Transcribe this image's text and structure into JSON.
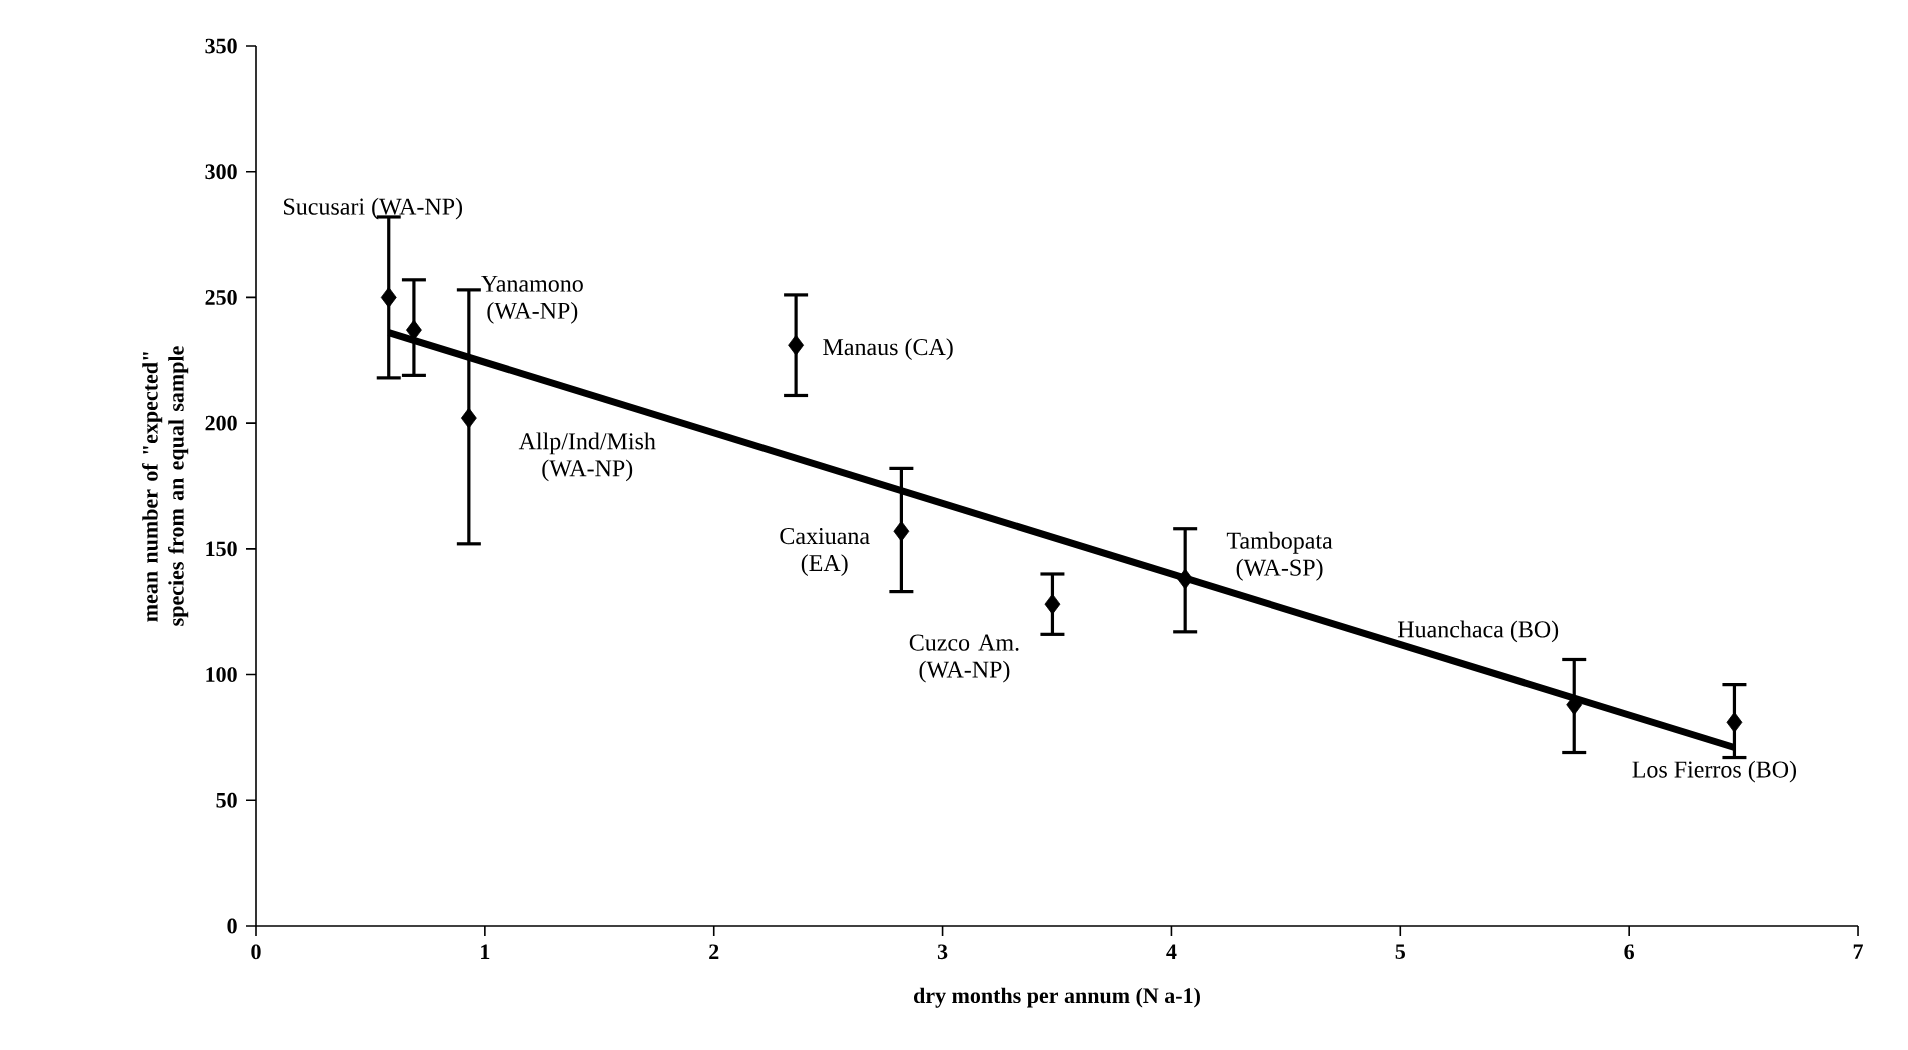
{
  "chart_data": {
    "type": "scatter",
    "xlabel": "dry months per annum (N a-1)",
    "ylabel": "mean number of \"expected\" species from an equal sample",
    "xlim": [
      0,
      7
    ],
    "xticks": [
      0,
      1,
      2,
      3,
      4,
      5,
      6,
      7
    ],
    "ylim": [
      0,
      350
    ],
    "yticks": [
      0,
      50,
      100,
      150,
      200,
      250,
      300,
      350
    ],
    "series": [
      {
        "color": "#000000",
        "marker": "diamond",
        "x": [
          0.58,
          0.69,
          0.93,
          2.36,
          2.82,
          3.48,
          4.06,
          5.76,
          6.46
        ],
        "values": [
          250,
          237,
          202,
          231,
          157,
          128,
          138,
          88,
          81
        ],
        "errors": [
          [
            218,
            282
          ],
          [
            219,
            257
          ],
          [
            152,
            253
          ],
          [
            211,
            251
          ],
          [
            133,
            182
          ],
          [
            116,
            140
          ],
          [
            117,
            158
          ],
          [
            69,
            106
          ],
          [
            67,
            96
          ]
        ]
      },
      {
        "type": "line",
        "color": "#000000",
        "marker": "none",
        "x": [
          0.58,
          6.46
        ],
        "values": [
          236,
          71
        ]
      }
    ],
    "annotations": [
      "Sucusari (WA-NP)",
      {
        "text": "Yanamono (WA-NP)",
        "x": 0.69,
        "y": 237
      },
      {
        "text": "Allp/Ind/Mish (WA-NP)",
        "x": 0.93,
        "y": 202
      },
      {
        "text": "Manaus (CA)",
        "x": 2.36,
        "y": 231
      },
      "Caxiuana (EA)",
      {
        "text": "Cuzco Am. (WA-NP)",
        "x": 3.48,
        "y": 128
      },
      {
        "text": "Tambopata (WA-SP)",
        "x": 4.06,
        "y": 138
      },
      {
        "text": "Huanchaca (BO)",
        "x": 5.76,
        "y": 88
      },
      {
        "text": "Los Fierros (BO)",
        "x": 6.46,
        "y": 81
      }
    ]
  }
}
